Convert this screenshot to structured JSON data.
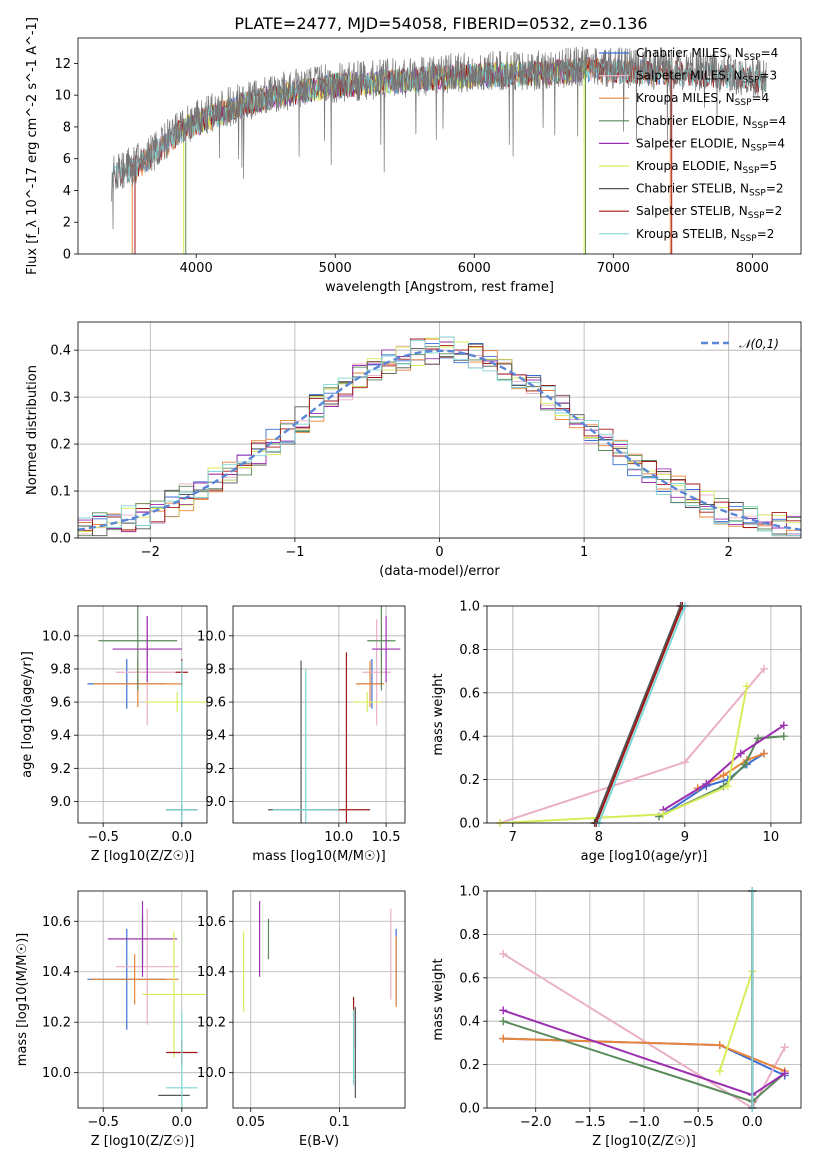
{
  "title": "PLATE=2477, MJD=54058, FIBERID=0532, z=0.136",
  "colors": {
    "Chabrier MILES": "#3b6fd6",
    "Salpeter MILES": "#e9b0c8",
    "Kroupa MILES": "#e8853a",
    "Chabrier ELODIE": "#5a8a5a",
    "Salpeter ELODIE": "#9b2fb0",
    "Kroupa ELODIE": "#d8ec5a",
    "Chabrier STELIB": "#555555",
    "Salpeter STELIB": "#a01818",
    "Kroupa STELIB": "#7fd6d6"
  },
  "chart_data": [
    {
      "id": "spectrum",
      "type": "line",
      "title": "PLATE=2477, MJD=54058, FIBERID=0532, z=0.136",
      "xlabel": "wavelength [Angstrom, rest frame]",
      "ylabel": "Flux [f_λ 10^-17 erg cm^-2 s^-1 A^-1]",
      "xlim": [
        3150,
        8350
      ],
      "ylim": [
        0,
        13.6
      ],
      "xticks": [
        4000,
        5000,
        6000,
        7000,
        8000
      ],
      "yticks": [
        0,
        2,
        4,
        6,
        8,
        10,
        12
      ],
      "grid": false,
      "legend_position": "right",
      "data_flux_envelope": {
        "x": [
          3400,
          3550,
          3700,
          3900,
          4100,
          4300,
          4500,
          4800,
          5000,
          5300,
          5600,
          5900,
          6200,
          6500,
          6800,
          7100,
          7400,
          7700,
          8000,
          8100
        ],
        "y": [
          5.2,
          5.5,
          6.5,
          8.0,
          8.8,
          9.5,
          10.0,
          10.5,
          10.8,
          11.0,
          11.2,
          11.4,
          11.5,
          11.6,
          11.8,
          11.7,
          11.6,
          11.5,
          11.2,
          11.0
        ]
      },
      "series": [
        {
          "name": "Chabrier MILES",
          "n_ssp": 4
        },
        {
          "name": "Salpeter MILES",
          "n_ssp": 3
        },
        {
          "name": "Kroupa MILES",
          "n_ssp": 4
        },
        {
          "name": "Chabrier ELODIE",
          "n_ssp": 4
        },
        {
          "name": "Salpeter ELODIE",
          "n_ssp": 4
        },
        {
          "name": "Kroupa ELODIE",
          "n_ssp": 5
        },
        {
          "name": "Chabrier STELIB",
          "n_ssp": 2
        },
        {
          "name": "Salpeter STELIB",
          "n_ssp": 2
        },
        {
          "name": "Kroupa STELIB",
          "n_ssp": 2
        }
      ]
    },
    {
      "id": "residuals",
      "type": "line",
      "xlabel": "(data-model)/error",
      "ylabel": "Normed distribution",
      "xlim": [
        -2.5,
        2.5
      ],
      "ylim": [
        0,
        0.46
      ],
      "xticks": [
        -2,
        -1,
        0,
        1,
        2
      ],
      "yticks": [
        0.0,
        0.1,
        0.2,
        0.3,
        0.4
      ],
      "grid": true,
      "legend": "𝒩(0,1)",
      "legend_position": "top-right"
    },
    {
      "id": "age_vs_Z",
      "type": "scatter",
      "xlabel": "Z [log10(Z/Z☉)]",
      "ylabel": "age [log10(age/yr)]",
      "xlim": [
        -0.66,
        0.16
      ],
      "ylim": [
        8.87,
        10.18
      ],
      "xticks": [
        -0.5,
        0.0
      ],
      "yticks": [
        9.0,
        9.2,
        9.4,
        9.6,
        9.8,
        10.0
      ],
      "grid": true,
      "points": [
        {
          "series": "Chabrier MILES",
          "x": -0.35,
          "y": 9.71,
          "xerr": 0.25,
          "yerr": 0.15
        },
        {
          "series": "Salpeter MILES",
          "x": -0.22,
          "y": 9.78,
          "xerr": 0.2,
          "yerr": 0.32
        },
        {
          "series": "Kroupa MILES",
          "x": -0.28,
          "y": 9.71,
          "xerr": 0.28,
          "yerr": 0.14
        },
        {
          "series": "Chabrier ELODIE",
          "x": -0.28,
          "y": 9.97,
          "xerr": 0.25,
          "yerr": 0.3
        },
        {
          "series": "Salpeter ELODIE",
          "x": -0.22,
          "y": 9.92,
          "xerr": 0.22,
          "yerr": 0.2
        },
        {
          "series": "Kroupa ELODIE",
          "x": -0.03,
          "y": 9.6,
          "xerr": 0.2,
          "yerr": 0.06
        },
        {
          "series": "Chabrier STELIB",
          "x": 0.0,
          "y": 8.95,
          "xerr": 0.1,
          "yerr": 0.03
        },
        {
          "series": "Salpeter STELIB",
          "x": 0.0,
          "y": 9.78,
          "xerr": 0.04,
          "yerr": 0.08
        },
        {
          "series": "Kroupa STELIB",
          "x": 0.0,
          "y": 8.95,
          "xerr": 0.1,
          "yerr": 0.9
        }
      ]
    },
    {
      "id": "age_vs_mass",
      "type": "scatter",
      "xlabel": "mass [log10(M/M☉)]",
      "ylabel": "",
      "xlim": [
        8.88,
        10.7
      ],
      "ylim": [
        8.87,
        10.18
      ],
      "xticks": [
        10.0,
        10.5
      ],
      "yticks": [
        9.0,
        9.2,
        9.4,
        9.6,
        9.8,
        10.0
      ],
      "grid": true,
      "points": [
        {
          "series": "Chabrier MILES",
          "x": 10.35,
          "y": 9.71,
          "xerr": 0.12,
          "yerr": 0.15
        },
        {
          "series": "Salpeter MILES",
          "x": 10.4,
          "y": 9.78,
          "xerr": 0.15,
          "yerr": 0.32
        },
        {
          "series": "Kroupa MILES",
          "x": 10.33,
          "y": 9.71,
          "xerr": 0.15,
          "yerr": 0.14
        },
        {
          "series": "Chabrier ELODIE",
          "x": 10.45,
          "y": 9.97,
          "xerr": 0.15,
          "yerr": 0.3
        },
        {
          "series": "Salpeter ELODIE",
          "x": 10.5,
          "y": 9.92,
          "xerr": 0.15,
          "yerr": 0.2
        },
        {
          "series": "Kroupa ELODIE",
          "x": 10.3,
          "y": 9.6,
          "xerr": 0.15,
          "yerr": 0.06
        },
        {
          "series": "Chabrier STELIB",
          "x": 9.6,
          "y": 8.95,
          "xerr": 0.35,
          "yerr": 0.9
        },
        {
          "series": "Salpeter STELIB",
          "x": 10.08,
          "y": 8.95,
          "xerr": 0.25,
          "yerr": 0.95
        },
        {
          "series": "Kroupa STELIB",
          "x": 9.65,
          "y": 8.95,
          "xerr": 0.35,
          "yerr": 0.85
        }
      ]
    },
    {
      "id": "weight_vs_age",
      "type": "line",
      "xlabel": "age [log10(age/yr)]",
      "ylabel": "mass weight",
      "xlim": [
        6.7,
        10.35
      ],
      "ylim": [
        0,
        1.0
      ],
      "xticks": [
        7,
        8,
        9,
        10
      ],
      "yticks": [
        0.0,
        0.2,
        0.4,
        0.6,
        0.8,
        1.0
      ],
      "grid": true,
      "series": [
        {
          "name": "Chabrier MILES",
          "x": [
            8.75,
            9.25,
            9.5,
            9.72,
            9.92
          ],
          "y": [
            0.04,
            0.17,
            0.2,
            0.27,
            0.32
          ]
        },
        {
          "name": "Salpeter MILES",
          "x": [
            6.85,
            9.0,
            9.92
          ],
          "y": [
            0.0,
            0.28,
            0.71
          ]
        },
        {
          "name": "Kroupa MILES",
          "x": [
            9.15,
            9.45,
            9.72,
            9.92
          ],
          "y": [
            0.16,
            0.22,
            0.29,
            0.32
          ]
        },
        {
          "name": "Chabrier ELODIE",
          "x": [
            8.7,
            9.45,
            9.7,
            9.85,
            10.15
          ],
          "y": [
            0.03,
            0.17,
            0.27,
            0.39,
            0.4
          ]
        },
        {
          "name": "Salpeter ELODIE",
          "x": [
            8.75,
            9.25,
            9.65,
            10.15
          ],
          "y": [
            0.06,
            0.18,
            0.32,
            0.45
          ]
        },
        {
          "name": "Kroupa ELODIE",
          "x": [
            6.85,
            8.75,
            9.5,
            9.72
          ],
          "y": [
            0.0,
            0.04,
            0.17,
            0.63
          ]
        },
        {
          "name": "Chabrier STELIB",
          "x": [
            7.95,
            8.95
          ],
          "y": [
            0.0,
            1.0
          ]
        },
        {
          "name": "Salpeter STELIB",
          "x": [
            7.97,
            8.97
          ],
          "y": [
            0.0,
            1.0
          ]
        },
        {
          "name": "Kroupa STELIB",
          "x": [
            8.0,
            9.0
          ],
          "y": [
            0.0,
            1.0
          ]
        }
      ]
    },
    {
      "id": "mass_vs_Z",
      "type": "scatter",
      "xlabel": "Z [log10(Z/Z☉)]",
      "ylabel": "mass [log10(M/M☉)]",
      "xlim": [
        -0.66,
        0.16
      ],
      "ylim": [
        9.86,
        10.72
      ],
      "xticks": [
        -0.5,
        0.0
      ],
      "yticks": [
        10.0,
        10.2,
        10.4,
        10.6
      ],
      "grid": true,
      "points": [
        {
          "series": "Chabrier MILES",
          "x": -0.35,
          "y": 10.37,
          "xerr": 0.25,
          "yerr": 0.2
        },
        {
          "series": "Salpeter MILES",
          "x": -0.22,
          "y": 10.42,
          "xerr": 0.2,
          "yerr": 0.23
        },
        {
          "series": "Kroupa MILES",
          "x": -0.3,
          "y": 10.37,
          "xerr": 0.28,
          "yerr": 0.1
        },
        {
          "series": "Chabrier ELODIE",
          "x": -0.25,
          "y": 10.53,
          "xerr": 0.22,
          "yerr": 0.1
        },
        {
          "series": "Salpeter ELODIE",
          "x": -0.25,
          "y": 10.53,
          "xerr": 0.22,
          "yerr": 0.15
        },
        {
          "series": "Kroupa ELODIE",
          "x": -0.05,
          "y": 10.31,
          "xerr": 0.2,
          "yerr": 0.25
        },
        {
          "series": "Chabrier STELIB",
          "x": -0.05,
          "y": 9.91,
          "xerr": 0.1,
          "yerr": 0.0
        },
        {
          "series": "Salpeter STELIB",
          "x": 0.0,
          "y": 10.08,
          "xerr": 0.1,
          "yerr": 0.05
        },
        {
          "series": "Kroupa STELIB",
          "x": 0.0,
          "y": 9.94,
          "xerr": 0.1,
          "yerr": 0.3
        }
      ]
    },
    {
      "id": "mass_vs_ebv",
      "type": "scatter",
      "xlabel": "E(B-V)",
      "ylabel": "",
      "xlim": [
        0.04,
        0.137
      ],
      "ylim": [
        9.86,
        10.72
      ],
      "xticks": [
        0.05,
        0.1
      ],
      "yticks": [
        10.0,
        10.2,
        10.4,
        10.6
      ],
      "grid": true,
      "points": [
        {
          "series": "Chabrier MILES",
          "x": 0.132,
          "y": 10.42,
          "yerr": 0.15
        },
        {
          "series": "Salpeter MILES",
          "x": 0.129,
          "y": 10.47,
          "yerr": 0.18
        },
        {
          "series": "Kroupa MILES",
          "x": 0.132,
          "y": 10.4,
          "yerr": 0.14
        },
        {
          "series": "Chabrier ELODIE",
          "x": 0.06,
          "y": 10.53,
          "yerr": 0.08
        },
        {
          "series": "Salpeter ELODIE",
          "x": 0.055,
          "y": 10.53,
          "yerr": 0.15
        },
        {
          "series": "Kroupa ELODIE",
          "x": 0.046,
          "y": 10.4,
          "yerr": 0.16
        },
        {
          "series": "Chabrier STELIB",
          "x": 0.109,
          "y": 10.08,
          "yerr": 0.18
        },
        {
          "series": "Salpeter STELIB",
          "x": 0.108,
          "y": 10.2,
          "yerr": 0.1
        },
        {
          "series": "Kroupa STELIB",
          "x": 0.108,
          "y": 10.1,
          "yerr": 0.15
        }
      ]
    },
    {
      "id": "weight_vs_Z",
      "type": "line",
      "xlabel": "Z [log10(Z/Z☉)]",
      "ylabel": "mass weight",
      "xlim": [
        -2.45,
        0.45
      ],
      "ylim": [
        0,
        1.0
      ],
      "xticks": [
        -2.0,
        -1.5,
        -1.0,
        -0.5,
        0.0
      ],
      "yticks": [
        0.0,
        0.2,
        0.4,
        0.6,
        0.8,
        1.0
      ],
      "grid": true,
      "series": [
        {
          "name": "Chabrier MILES",
          "x": [
            -2.3,
            -0.3,
            0.3
          ],
          "y": [
            0.32,
            0.29,
            0.15
          ]
        },
        {
          "name": "Salpeter MILES",
          "x": [
            -2.3,
            0.0,
            0.3
          ],
          "y": [
            0.71,
            0.0,
            0.28
          ]
        },
        {
          "name": "Kroupa MILES",
          "x": [
            -2.3,
            -0.3,
            0.3
          ],
          "y": [
            0.32,
            0.29,
            0.17
          ]
        },
        {
          "name": "Chabrier ELODIE",
          "x": [
            -2.3,
            0.0,
            0.3
          ],
          "y": [
            0.4,
            0.03,
            0.16
          ]
        },
        {
          "name": "Salpeter ELODIE",
          "x": [
            -2.3,
            0.0,
            0.3
          ],
          "y": [
            0.45,
            0.06,
            0.16
          ]
        },
        {
          "name": "Kroupa ELODIE",
          "x": [
            -0.3,
            0.0
          ],
          "y": [
            0.17,
            0.63
          ]
        },
        {
          "name": "Chabrier STELIB",
          "x": [
            0.0,
            0.0
          ],
          "y": [
            0.0,
            1.0
          ]
        },
        {
          "name": "Salpeter STELIB",
          "x": [
            0.0,
            0.0
          ],
          "y": [
            0.0,
            1.0
          ]
        },
        {
          "name": "Kroupa STELIB",
          "x": [
            0.0,
            0.0
          ],
          "y": [
            0.0,
            1.0
          ]
        }
      ]
    }
  ]
}
